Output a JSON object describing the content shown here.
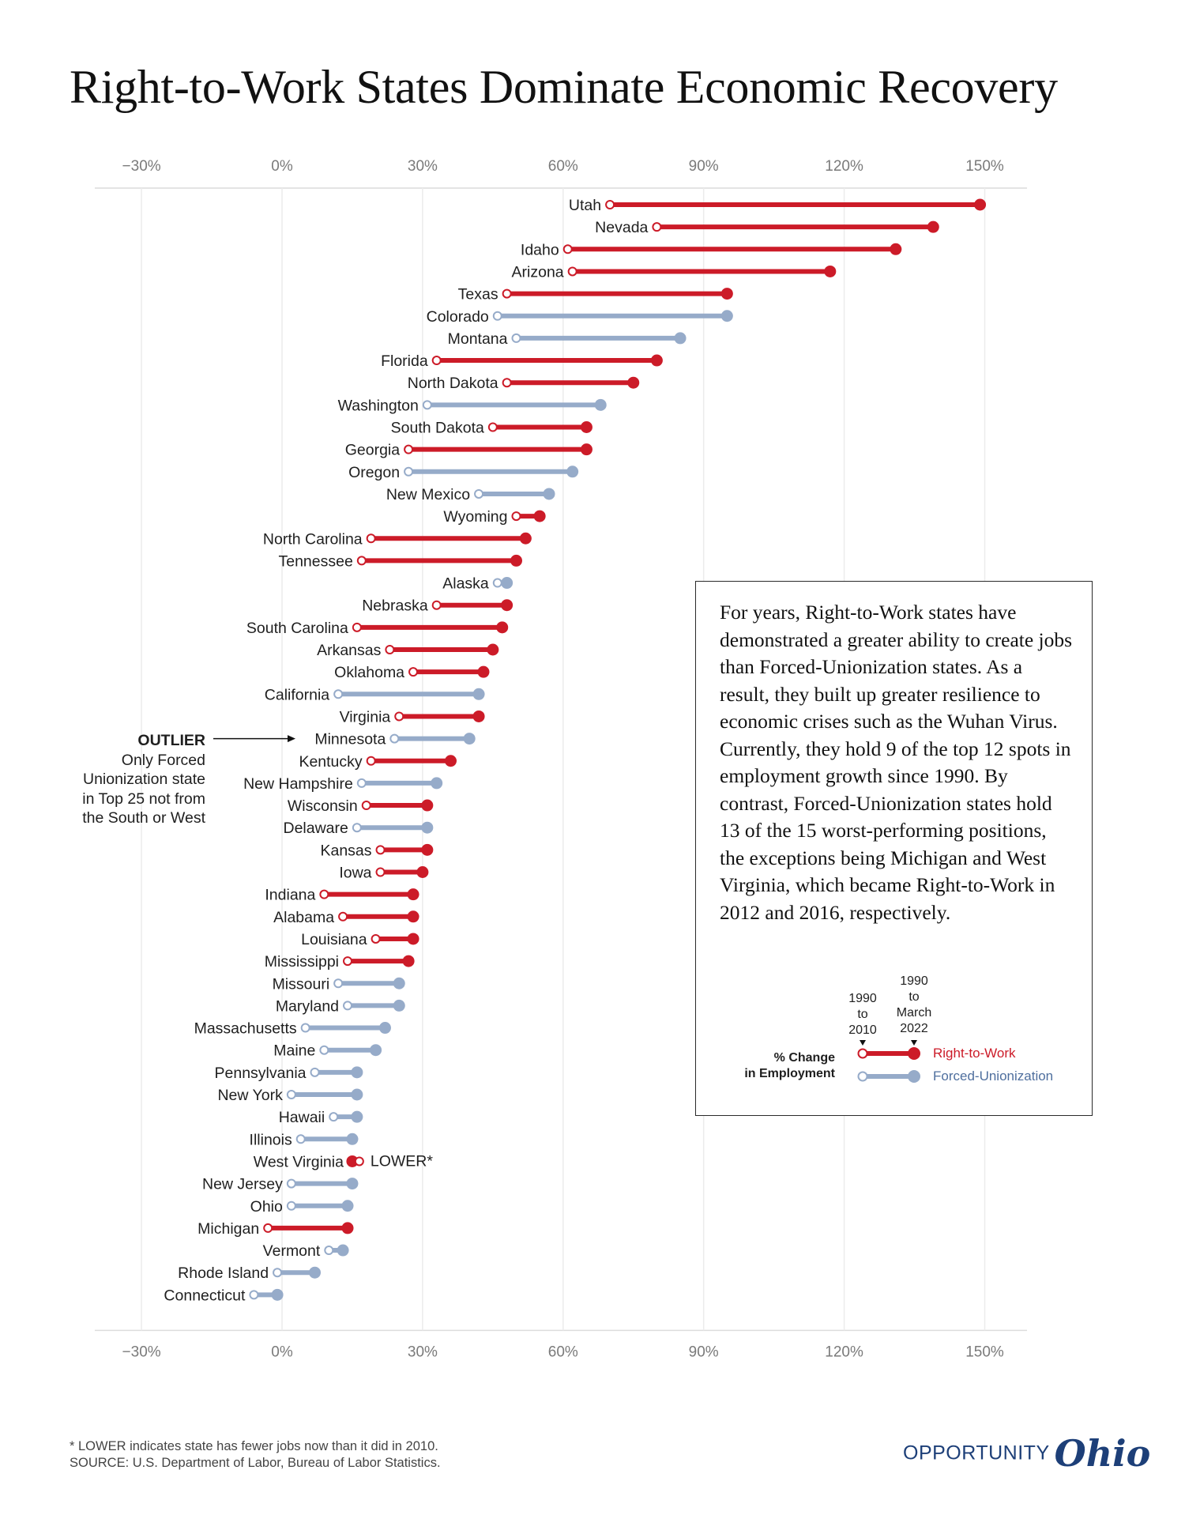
{
  "title": "Right-to-Work States Dominate Economic Recovery",
  "colors": {
    "right_to_work": "#cc1b28",
    "forced_unionization": "#96abc9",
    "brand": "#1d3f78"
  },
  "chart_data": {
    "type": "dumbbell",
    "x_unit": "% change in employment",
    "xlim": [
      -35,
      155
    ],
    "x_ticks": [
      -30,
      0,
      30,
      60,
      90,
      120,
      150
    ],
    "x_tick_labels": [
      "−30%",
      "0%",
      "30%",
      "60%",
      "90%",
      "120%",
      "150%"
    ],
    "series": [
      {
        "name": "1990 to 2010",
        "marker": "open circle"
      },
      {
        "name": "1990 to March 2022",
        "marker": "filled circle"
      }
    ],
    "grid": "vertical",
    "states": [
      {
        "name": "Utah",
        "group": "Right-to-Work",
        "v2010": 70,
        "v2022": 149
      },
      {
        "name": "Nevada",
        "group": "Right-to-Work",
        "v2010": 80,
        "v2022": 139
      },
      {
        "name": "Idaho",
        "group": "Right-to-Work",
        "v2010": 61,
        "v2022": 131
      },
      {
        "name": "Arizona",
        "group": "Right-to-Work",
        "v2010": 62,
        "v2022": 117
      },
      {
        "name": "Texas",
        "group": "Right-to-Work",
        "v2010": 48,
        "v2022": 95
      },
      {
        "name": "Colorado",
        "group": "Forced-Unionization",
        "v2010": 46,
        "v2022": 95
      },
      {
        "name": "Montana",
        "group": "Forced-Unionization",
        "v2010": 50,
        "v2022": 85
      },
      {
        "name": "Florida",
        "group": "Right-to-Work",
        "v2010": 33,
        "v2022": 80
      },
      {
        "name": "North Dakota",
        "group": "Right-to-Work",
        "v2010": 48,
        "v2022": 75
      },
      {
        "name": "Washington",
        "group": "Forced-Unionization",
        "v2010": 31,
        "v2022": 68
      },
      {
        "name": "South Dakota",
        "group": "Right-to-Work",
        "v2010": 45,
        "v2022": 65
      },
      {
        "name": "Georgia",
        "group": "Right-to-Work",
        "v2010": 27,
        "v2022": 65
      },
      {
        "name": "Oregon",
        "group": "Forced-Unionization",
        "v2010": 27,
        "v2022": 62
      },
      {
        "name": "New Mexico",
        "group": "Forced-Unionization",
        "v2010": 42,
        "v2022": 57
      },
      {
        "name": "Wyoming",
        "group": "Right-to-Work",
        "v2010": 50,
        "v2022": 55
      },
      {
        "name": "North Carolina",
        "group": "Right-to-Work",
        "v2010": 19,
        "v2022": 52
      },
      {
        "name": "Tennessee",
        "group": "Right-to-Work",
        "v2010": 17,
        "v2022": 50
      },
      {
        "name": "Alaska",
        "group": "Forced-Unionization",
        "v2010": 46,
        "v2022": 48
      },
      {
        "name": "Nebraska",
        "group": "Right-to-Work",
        "v2010": 33,
        "v2022": 48
      },
      {
        "name": "South Carolina",
        "group": "Right-to-Work",
        "v2010": 16,
        "v2022": 47
      },
      {
        "name": "Arkansas",
        "group": "Right-to-Work",
        "v2010": 23,
        "v2022": 45
      },
      {
        "name": "Oklahoma",
        "group": "Right-to-Work",
        "v2010": 28,
        "v2022": 43
      },
      {
        "name": "California",
        "group": "Forced-Unionization",
        "v2010": 12,
        "v2022": 42
      },
      {
        "name": "Virginia",
        "group": "Right-to-Work",
        "v2010": 25,
        "v2022": 42
      },
      {
        "name": "Minnesota",
        "group": "Forced-Unionization",
        "v2010": 24,
        "v2022": 40
      },
      {
        "name": "Kentucky",
        "group": "Right-to-Work",
        "v2010": 19,
        "v2022": 36
      },
      {
        "name": "New Hampshire",
        "group": "Forced-Unionization",
        "v2010": 17,
        "v2022": 33
      },
      {
        "name": "Wisconsin",
        "group": "Right-to-Work",
        "v2010": 18,
        "v2022": 31
      },
      {
        "name": "Delaware",
        "group": "Forced-Unionization",
        "v2010": 16,
        "v2022": 31
      },
      {
        "name": "Kansas",
        "group": "Right-to-Work",
        "v2010": 21,
        "v2022": 31
      },
      {
        "name": "Iowa",
        "group": "Right-to-Work",
        "v2010": 21,
        "v2022": 30
      },
      {
        "name": "Indiana",
        "group": "Right-to-Work",
        "v2010": 9,
        "v2022": 28
      },
      {
        "name": "Alabama",
        "group": "Right-to-Work",
        "v2010": 13,
        "v2022": 28
      },
      {
        "name": "Louisiana",
        "group": "Right-to-Work",
        "v2010": 20,
        "v2022": 28
      },
      {
        "name": "Mississippi",
        "group": "Right-to-Work",
        "v2010": 14,
        "v2022": 27
      },
      {
        "name": "Missouri",
        "group": "Forced-Unionization",
        "v2010": 12,
        "v2022": 25
      },
      {
        "name": "Maryland",
        "group": "Forced-Unionization",
        "v2010": 14,
        "v2022": 25
      },
      {
        "name": "Massachusetts",
        "group": "Forced-Unionization",
        "v2010": 5,
        "v2022": 22
      },
      {
        "name": "Maine",
        "group": "Forced-Unionization",
        "v2010": 9,
        "v2022": 20
      },
      {
        "name": "Pennsylvania",
        "group": "Forced-Unionization",
        "v2010": 7,
        "v2022": 16
      },
      {
        "name": "New York",
        "group": "Forced-Unionization",
        "v2010": 2,
        "v2022": 16
      },
      {
        "name": "Hawaii",
        "group": "Forced-Unionization",
        "v2010": 11,
        "v2022": 16
      },
      {
        "name": "Illinois",
        "group": "Forced-Unionization",
        "v2010": 4,
        "v2022": 15
      },
      {
        "name": "West Virginia",
        "group": "Right-to-Work",
        "v2010": 16.5,
        "v2022": 15,
        "annotation": "LOWER*"
      },
      {
        "name": "New Jersey",
        "group": "Forced-Unionization",
        "v2010": 2,
        "v2022": 15
      },
      {
        "name": "Ohio",
        "group": "Forced-Unionization",
        "v2010": 2,
        "v2022": 14
      },
      {
        "name": "Michigan",
        "group": "Right-to-Work",
        "v2010": -3,
        "v2022": 14
      },
      {
        "name": "Vermont",
        "group": "Forced-Unionization",
        "v2010": 10,
        "v2022": 13
      },
      {
        "name": "Rhode Island",
        "group": "Forced-Unionization",
        "v2010": -1,
        "v2022": 7
      },
      {
        "name": "Connecticut",
        "group": "Forced-Unionization",
        "v2010": -6,
        "v2022": -1
      }
    ]
  },
  "outlier_note": {
    "heading": "OUTLIER",
    "lines": [
      "Only Forced",
      "Unionization state",
      "in Top 25 not from",
      "the South or West"
    ],
    "target": "Minnesota"
  },
  "info_box": {
    "text": "For years, Right-to-Work states have demonstrated a greater ability to create jobs than Forced-Unionization states. As a result, they built up greater resilience to economic crises such as the Wuhan Virus. Currently, they hold 9 of the top 12 spots in employment growth since 1990. By contrast, Forced-Unionization states hold 13 of the 15 worst-performing positions, the exceptions being Michigan and West Virginia, which became Right-to-Work in 2012 and 2016, respectively."
  },
  "legend": {
    "start_label_lines": [
      "1990",
      "to",
      "2010"
    ],
    "end_label_lines": [
      "1990",
      "to",
      "March",
      "2022"
    ],
    "measure_label_lines": [
      "% Change",
      "in Employment"
    ],
    "right_to_work": "Right-to-Work",
    "forced_unionization": "Forced-Unionization"
  },
  "footnote": {
    "lines": [
      "* LOWER indicates state has fewer jobs now than it did in 2010.",
      "SOURCE: U.S. Department of Labor, Bureau of Labor Statistics."
    ]
  },
  "brand": {
    "word": "OPPORTUNITY",
    "script": "Ohio"
  }
}
